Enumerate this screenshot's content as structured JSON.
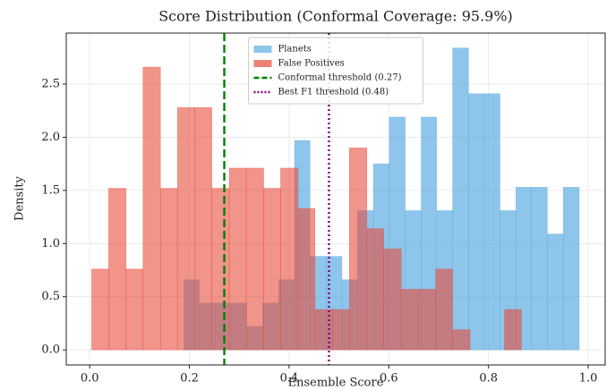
{
  "chart_data": {
    "type": "histogram",
    "title": "Score Distribution (Conformal Coverage: 95.9%)",
    "xlabel": "Ensemble Score",
    "ylabel": "Density",
    "series": [
      {
        "name": "Planets",
        "color": "#5dade2",
        "bins": [
          0.189,
          0.22,
          0.252,
          0.284,
          0.315,
          0.347,
          0.379,
          0.411,
          0.442,
          0.474,
          0.506,
          0.537,
          0.569,
          0.601,
          0.633,
          0.665,
          0.696,
          0.728,
          0.76,
          0.791,
          0.823,
          0.855,
          0.886,
          0.918,
          0.95,
          0.982
        ],
        "values": [
          0.66,
          0.44,
          0.44,
          0.44,
          0.22,
          0.44,
          0.66,
          1.97,
          0.88,
          0.88,
          0.66,
          1.31,
          1.75,
          2.19,
          1.31,
          2.19,
          1.31,
          2.84,
          2.41,
          2.41,
          1.31,
          1.53,
          1.53,
          1.09,
          1.53
        ]
      },
      {
        "name": "False Positives",
        "color": "#e74c3c",
        "bins": [
          0.004,
          0.038,
          0.073,
          0.107,
          0.142,
          0.176,
          0.211,
          0.245,
          0.28,
          0.314,
          0.349,
          0.383,
          0.418,
          0.452,
          0.487,
          0.521,
          0.556,
          0.59,
          0.625,
          0.659,
          0.694,
          0.728,
          0.763,
          0.797,
          0.832,
          0.866
        ],
        "values": [
          0.76,
          1.52,
          0.76,
          2.66,
          1.52,
          2.28,
          2.28,
          1.52,
          1.71,
          1.71,
          1.52,
          1.71,
          1.33,
          0.38,
          0.38,
          1.9,
          1.14,
          0.95,
          0.57,
          0.57,
          0.76,
          0.19,
          0,
          0,
          0.38
        ]
      }
    ],
    "threshold_lines": [
      {
        "name": "Conformal threshold (0.27)",
        "value": 0.27,
        "color": "#008000",
        "style": "dashed"
      },
      {
        "name": "Best F1 threshold (0.48)",
        "value": 0.48,
        "color": "#800080",
        "style": "dotted"
      }
    ],
    "xlim": [
      -0.047,
      1.034
    ],
    "ylim": [
      -0.142,
      2.98
    ],
    "xticks": [
      {
        "value": 0,
        "label": "0.0"
      },
      0.2,
      0.4,
      0.6,
      0.8,
      {
        "value": 1,
        "label": "1.0"
      }
    ],
    "yticks": [
      {
        "value": 0,
        "label": "0.0"
      },
      0.5,
      {
        "value": 1,
        "label": "1.0"
      },
      1.5,
      {
        "value": 2,
        "label": "2.0"
      },
      2.5
    ],
    "grid": true,
    "legend": "upper center"
  }
}
